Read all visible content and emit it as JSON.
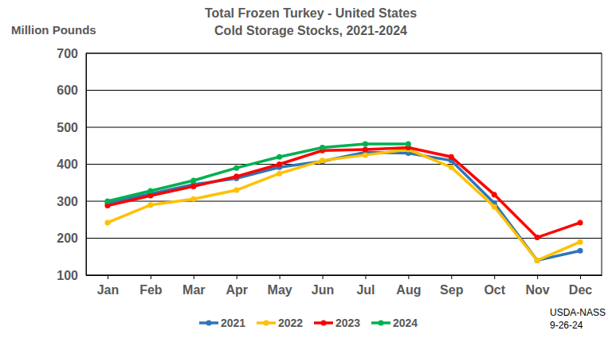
{
  "chart_data": {
    "type": "line",
    "title": "Total Frozen Turkey - United States",
    "subtitle": "Cold Storage Stocks, 2021-2024",
    "y_label": "Million Pounds",
    "annotations": [
      "USDA-NASS",
      "9-26-24"
    ],
    "categories": [
      "Jan",
      "Feb",
      "Mar",
      "Apr",
      "May",
      "Jun",
      "Jul",
      "Aug",
      "Sep",
      "Oct",
      "Nov",
      "Dec"
    ],
    "series": [
      {
        "name": "2021",
        "color": "#2e75b6",
        "values": [
          295,
          320,
          345,
          362,
          392,
          408,
          432,
          430,
          410,
          295,
          140,
          166
        ]
      },
      {
        "name": "2022",
        "color": "#ffc000",
        "values": [
          242,
          290,
          306,
          330,
          375,
          410,
          425,
          440,
          392,
          285,
          140,
          190
        ]
      },
      {
        "name": "2023",
        "color": "#ff0000",
        "values": [
          288,
          315,
          340,
          367,
          400,
          437,
          440,
          445,
          420,
          318,
          202,
          242
        ]
      },
      {
        "name": "2024",
        "color": "#00b050",
        "values": [
          300,
          328,
          356,
          390,
          420,
          445,
          455,
          455,
          null,
          null,
          null,
          null
        ]
      }
    ],
    "ylim": [
      100,
      700
    ],
    "yticks": [
      100,
      200,
      300,
      400,
      500,
      600,
      700
    ],
    "grid": true,
    "legend": "bottom",
    "marker": "circle"
  }
}
